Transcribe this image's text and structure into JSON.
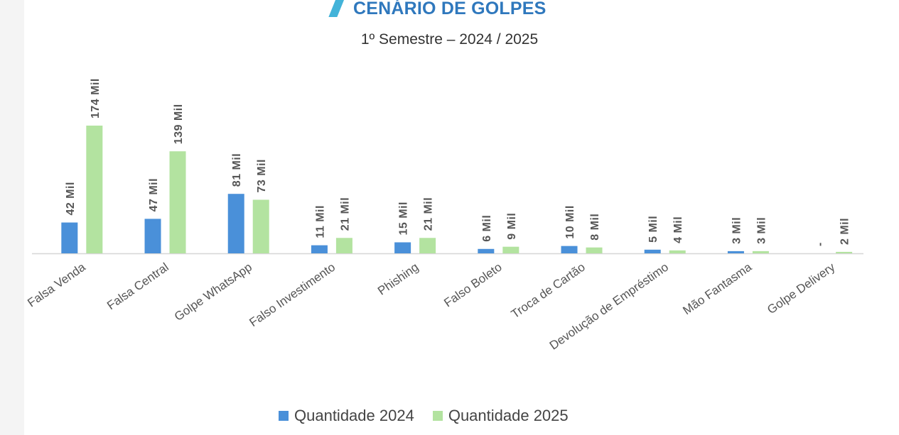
{
  "header": {
    "title": "CENÁRIO DE GOLPES",
    "subtitle": "1º Semestre – 2024 / 2025"
  },
  "colors": {
    "series_2024": "#4a90d9",
    "series_2025": "#b3e3a0",
    "title": "#2f78bd",
    "accent_mark": "#43b3d9"
  },
  "chart_data": {
    "type": "bar",
    "title": "CENÁRIO DE GOLPES",
    "subtitle": "1º Semestre – 2024 / 2025",
    "categories": [
      "Falsa Venda",
      "Falsa Central",
      "Golpe WhatsApp",
      "Falso Investimento",
      "Phishing",
      "Falso Boleto",
      "Troca de Cartão",
      "Devolução de Empréstimo",
      "Mão Fantasma",
      "Golpe Delivery"
    ],
    "unit": "Mil",
    "series": [
      {
        "name": "Quantidade 2024",
        "values": [
          42,
          47,
          81,
          11,
          15,
          6,
          10,
          5,
          3,
          0
        ],
        "labels": [
          "42 Mil",
          "47 Mil",
          "81 Mil",
          "11 Mil",
          "15 Mil",
          "6 Mil",
          "10 Mil",
          "5 Mil",
          "3 Mil",
          "-"
        ]
      },
      {
        "name": "Quantidade 2025",
        "values": [
          174,
          139,
          73,
          21,
          21,
          9,
          8,
          4,
          3,
          2
        ],
        "labels": [
          "174 Mil",
          "139 Mil",
          "73 Mil",
          "21 Mil",
          "21 Mil",
          "9 Mil",
          "8 Mil",
          "4 Mil",
          "3 Mil",
          "2 Mil"
        ]
      }
    ],
    "xlabel": "",
    "ylabel": "",
    "ylim": [
      0,
      174
    ],
    "grid": false,
    "legend_position": "bottom"
  },
  "legend": {
    "items": [
      {
        "label": "Quantidade 2024"
      },
      {
        "label": "Quantidade 2025"
      }
    ]
  }
}
